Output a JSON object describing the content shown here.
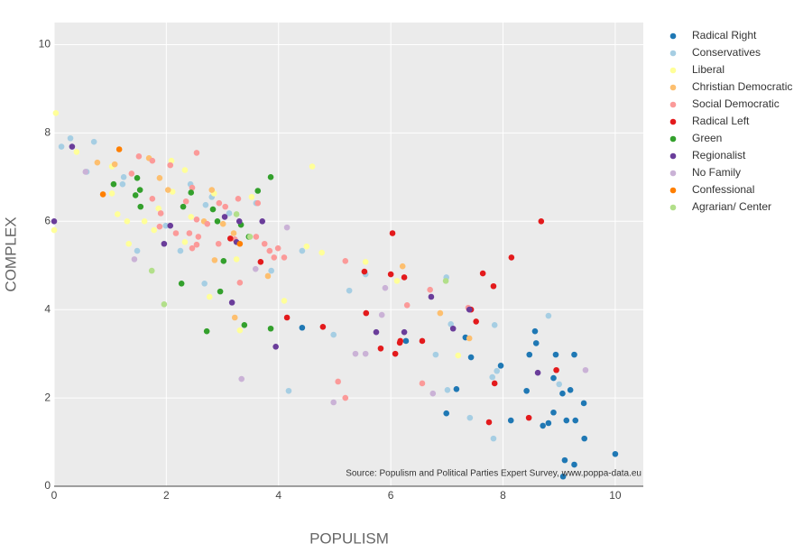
{
  "chart_data": {
    "type": "scatter",
    "x_label": "POPULISM",
    "y_label": "COMPLEX",
    "annotation": "Source: Populism and Political Parties Expert Survey, www.poppa-data.eu",
    "xlim": [
      0,
      10.5
    ],
    "ylim": [
      0,
      10.5
    ],
    "xticks": [
      0,
      2,
      4,
      6,
      8,
      10
    ],
    "yticks": [
      0,
      2,
      4,
      6,
      8,
      10
    ],
    "grid": true,
    "legend": "right",
    "series": [
      {
        "name": "Radical Right",
        "color": "#1f78b4",
        "x": [
          10,
          9.45,
          9.27,
          9.1,
          9.07,
          9.44,
          9.2,
          9.06,
          9.27,
          8.94,
          8.9,
          8.9,
          9.13,
          9.29,
          8.81,
          8.71,
          8.57,
          8.59,
          8.47,
          8.42,
          8.14,
          7.96,
          7.43,
          7.33,
          7.17,
          6.99,
          6.27,
          4.42
        ],
        "values": [
          0.73,
          1.08,
          0.49,
          0.59,
          0.22,
          1.88,
          2.18,
          2.1,
          2.98,
          2.98,
          2.45,
          1.67,
          1.49,
          1.49,
          1.43,
          1.37,
          3.51,
          3.24,
          2.98,
          2.16,
          1.49,
          2.73,
          2.92,
          3.37,
          2.2,
          1.65,
          3.29,
          3.59
        ]
      },
      {
        "name": "Conservatives",
        "color": "#a6cee3",
        "x": [
          0.29,
          0.71,
          0.13,
          0.58,
          1.22,
          1.24,
          1.48,
          1.99,
          2.43,
          2.7,
          2.81,
          2.68,
          2.25,
          3.12,
          3.6,
          3.87,
          4.42,
          4.18,
          4.98,
          5.26,
          5.55,
          6.8,
          6.99,
          7.01,
          7.07,
          7.41,
          7.85,
          7.81,
          7.89,
          7.83,
          8.81,
          9.0
        ],
        "values": [
          7.88,
          7.8,
          7.69,
          7.12,
          6.84,
          7.0,
          5.33,
          5.9,
          6.84,
          6.37,
          6.55,
          4.59,
          5.33,
          6.18,
          6.41,
          4.88,
          5.33,
          2.16,
          3.43,
          4.43,
          4.8,
          2.98,
          4.73,
          2.18,
          3.67,
          1.55,
          3.65,
          2.47,
          2.61,
          1.08,
          3.86,
          2.31
        ]
      },
      {
        "name": "Liberal",
        "color": "#ffff99",
        "x": [
          0.03,
          0,
          0.4,
          1.03,
          1.03,
          1.13,
          1.3,
          1.33,
          1.61,
          1.78,
          1.86,
          2.11,
          2.09,
          2.33,
          2.33,
          2.44,
          2.85,
          2.77,
          3.25,
          3.31,
          3.52,
          4.1,
          4.5,
          4.6,
          4.77,
          5.55,
          6.11,
          7.2
        ],
        "values": [
          8.45,
          5.8,
          7.57,
          7.24,
          6.63,
          6.16,
          6.0,
          5.49,
          6.0,
          5.8,
          6.29,
          6.67,
          7.37,
          7.16,
          5.53,
          6.1,
          6.63,
          4.29,
          5.14,
          3.53,
          6.55,
          4.2,
          5.43,
          7.24,
          5.29,
          5.08,
          4.65,
          2.96
        ]
      },
      {
        "name": "Christian Democratic",
        "color": "#fdbf6f",
        "x": [
          0.77,
          1.08,
          1.69,
          1.88,
          2.03,
          2.81,
          2.86,
          3.2,
          3.22,
          3.81,
          6.21,
          6.88,
          7.4,
          3.01,
          2.67
        ],
        "values": [
          7.33,
          7.29,
          7.43,
          6.98,
          6.71,
          6.71,
          5.12,
          5.73,
          3.82,
          4.76,
          4.98,
          3.92,
          3.35,
          5.94,
          6.0
        ]
      },
      {
        "name": "Social Democratic",
        "color": "#fb9a99",
        "x": [
          1.51,
          1.75,
          2.07,
          2.54,
          1.38,
          1.75,
          1.9,
          2.35,
          2.46,
          2.73,
          2.54,
          2.57,
          2.41,
          2.46,
          2.54,
          2.93,
          2.94,
          3.05,
          3.28,
          3.22,
          3.6,
          3.63,
          3.75,
          3.84,
          3.92,
          3.99,
          4.1,
          3.31,
          5.19,
          6.29,
          6.56,
          6.7,
          5.06,
          5.19,
          7.38,
          1.88,
          2.17
        ],
        "values": [
          7.47,
          7.37,
          7.27,
          7.55,
          7.08,
          6.51,
          6.18,
          6.45,
          6.76,
          5.94,
          6.04,
          5.65,
          5.73,
          5.39,
          5.47,
          5.49,
          6.41,
          6.33,
          6.51,
          5.59,
          5.65,
          6.41,
          5.49,
          5.33,
          5.18,
          5.39,
          5.18,
          4.61,
          5.1,
          4.1,
          2.33,
          4.45,
          2.37,
          2.0,
          4.04,
          5.88,
          5.73
        ]
      },
      {
        "name": "Radical Left",
        "color": "#e31a1c",
        "x": [
          8.68,
          8.15,
          7.64,
          7.83,
          6.03,
          6.0,
          6.24,
          5.53,
          5.56,
          5.82,
          6.08,
          6.17,
          6.16,
          6.56,
          7.52,
          7.43,
          4.79,
          4.15,
          3.68,
          3.14,
          7.85,
          8.95,
          8.46,
          7.75
        ],
        "values": [
          6.0,
          5.18,
          4.82,
          4.53,
          5.73,
          4.8,
          4.73,
          4.86,
          3.92,
          3.12,
          3.0,
          3.29,
          3.25,
          3.29,
          3.73,
          4.0,
          3.61,
          3.82,
          5.08,
          5.61,
          2.33,
          2.63,
          1.55,
          1.45
        ]
      },
      {
        "name": "Green",
        "color": "#33a02c",
        "x": [
          1.06,
          1.48,
          1.45,
          1.53,
          1.54,
          2.3,
          2.44,
          2.27,
          2.72,
          2.83,
          2.91,
          2.96,
          3.02,
          3.33,
          3.47,
          3.63,
          3.86,
          3.39,
          3.86
        ],
        "values": [
          6.84,
          6.98,
          6.59,
          6.71,
          6.33,
          6.33,
          6.65,
          4.59,
          3.51,
          6.27,
          6.0,
          4.41,
          5.1,
          5.92,
          5.65,
          6.69,
          7.0,
          3.65,
          3.57
        ]
      },
      {
        "name": "Regionalist",
        "color": "#6a3d9a",
        "x": [
          0,
          0.32,
          2.07,
          1.96,
          3.04,
          3.3,
          3.25,
          3.71,
          3.17,
          3.95,
          5.74,
          6.24,
          6.72,
          7.11,
          7.4,
          8.62
        ],
        "values": [
          6.0,
          7.69,
          5.9,
          5.49,
          6.1,
          6.0,
          5.53,
          6.0,
          4.16,
          3.16,
          3.49,
          3.49,
          4.29,
          3.57,
          4.0,
          2.57
        ]
      },
      {
        "name": "No Family",
        "color": "#cab2d6",
        "x": [
          0.56,
          1.43,
          4.15,
          3.59,
          3.34,
          5.37,
          5.55,
          5.84,
          5.9,
          6.75,
          4.98,
          9.47
        ],
        "values": [
          7.12,
          5.14,
          5.86,
          4.92,
          2.43,
          3.0,
          3.0,
          3.88,
          4.49,
          2.1,
          1.9,
          2.63
        ]
      },
      {
        "name": "Confessional",
        "color": "#ff7f00",
        "x": [
          1.16,
          0.87,
          3.31
        ],
        "values": [
          7.63,
          6.61,
          5.49
        ]
      },
      {
        "name": "Agrarian/ Center",
        "color": "#b2df8a",
        "x": [
          1.74,
          1.96,
          3.25,
          3.49,
          6.98
        ],
        "values": [
          4.88,
          4.12,
          6.16,
          5.65,
          4.65
        ]
      }
    ]
  }
}
